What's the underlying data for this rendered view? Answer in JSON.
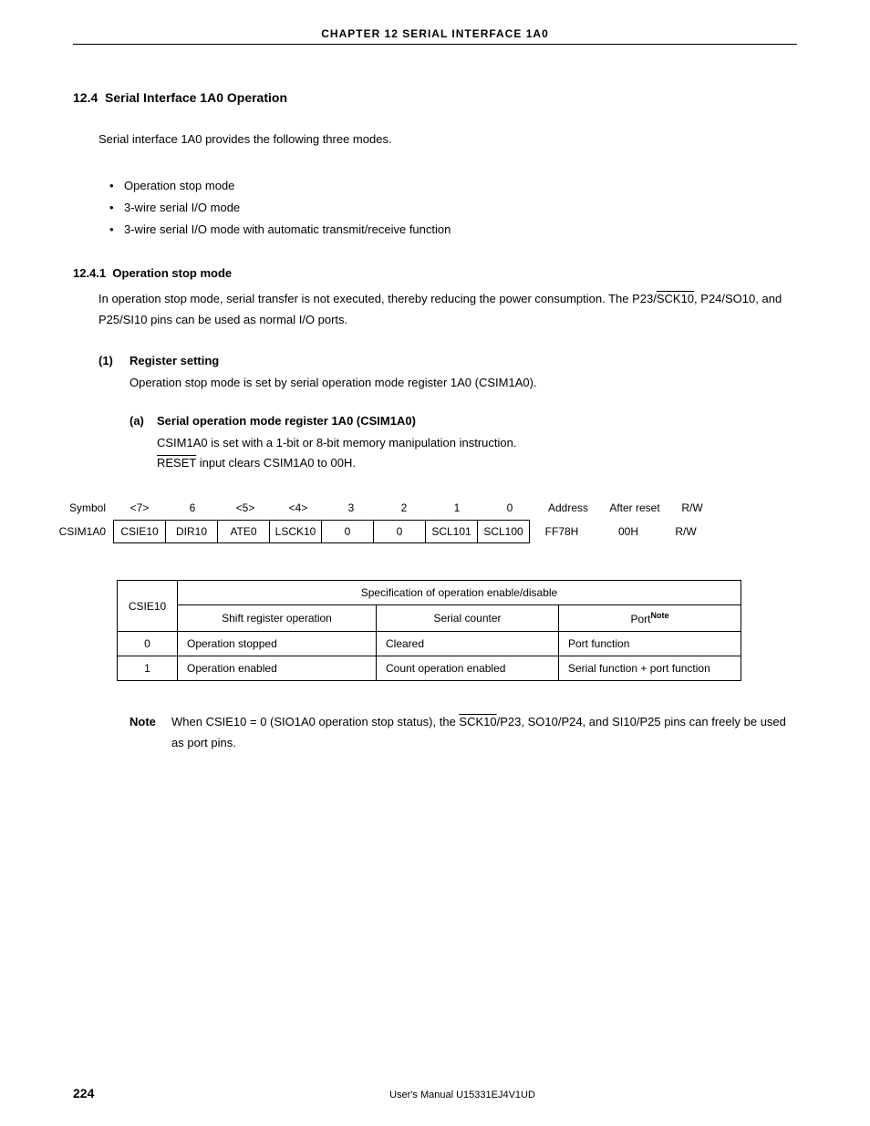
{
  "header": {
    "chapter_line": "CHAPTER  12   SERIAL  INTERFACE  1A0"
  },
  "section": {
    "number": "12.4",
    "title": "Serial Interface 1A0 Operation",
    "intro": "Serial interface 1A0 provides the following three modes.",
    "bullets": [
      "Operation stop mode",
      "3-wire serial I/O mode",
      "3-wire serial I/O mode with automatic transmit/receive function"
    ]
  },
  "subsection": {
    "number": "12.4.1",
    "title": "Operation stop mode",
    "body_pre": "In operation stop mode, serial transfer is not executed, thereby reducing the power consumption.  The P23/",
    "body_over": "SCK10",
    "body_post": ", P24/SO10, and P25/SI10 pins can be used as normal I/O ports."
  },
  "item1": {
    "num": "(1)",
    "title": "Register setting",
    "body": "Operation stop mode is set by serial operation mode register 1A0 (CSIM1A0)."
  },
  "item1a": {
    "let": "(a)",
    "title": "Serial operation mode register 1A0 (CSIM1A0)",
    "line1": "CSIM1A0 is set with a 1-bit or 8-bit memory manipulation instruction.",
    "line2_over": "RESET",
    "line2_post": " input clears CSIM1A0 to 00H."
  },
  "register": {
    "symbol_label": "Symbol",
    "row_label": "CSIM1A0",
    "bit_headers": [
      "<7>",
      "6",
      "<5>",
      "<4>",
      "3",
      "2",
      "1",
      "0"
    ],
    "bit_values": [
      "CSIE10",
      "DIR10",
      "ATE0",
      "LSCK10",
      "0",
      "0",
      "SCL101",
      "SCL100"
    ],
    "address_label": "Address",
    "address_value": "FF78H",
    "after_reset_label": "After reset",
    "after_reset_value": "00H",
    "rw_label": "R/W",
    "rw_value": "R/W"
  },
  "spec_table": {
    "key_header": "CSIE10",
    "span_header": "Specification of operation enable/disable",
    "col_a": "Shift register operation",
    "col_b": "Serial counter",
    "col_c_main": "Port",
    "col_c_sup": "Note",
    "rows": [
      {
        "k": "0",
        "a": "Operation stopped",
        "b": "Cleared",
        "c": "Port function"
      },
      {
        "k": "1",
        "a": "Operation enabled",
        "b": "Count operation enabled",
        "c": "Serial function + port function"
      }
    ]
  },
  "note": {
    "label": "Note",
    "pre": "When CSIE10 = 0 (SIO1A0 operation stop status), the ",
    "over": "SCK10",
    "post": "/P23, SO10/P24, and SI10/P25 pins can freely be used as port pins."
  },
  "footer": {
    "page": "224",
    "text": "User's Manual  U15331EJ4V1UD"
  }
}
